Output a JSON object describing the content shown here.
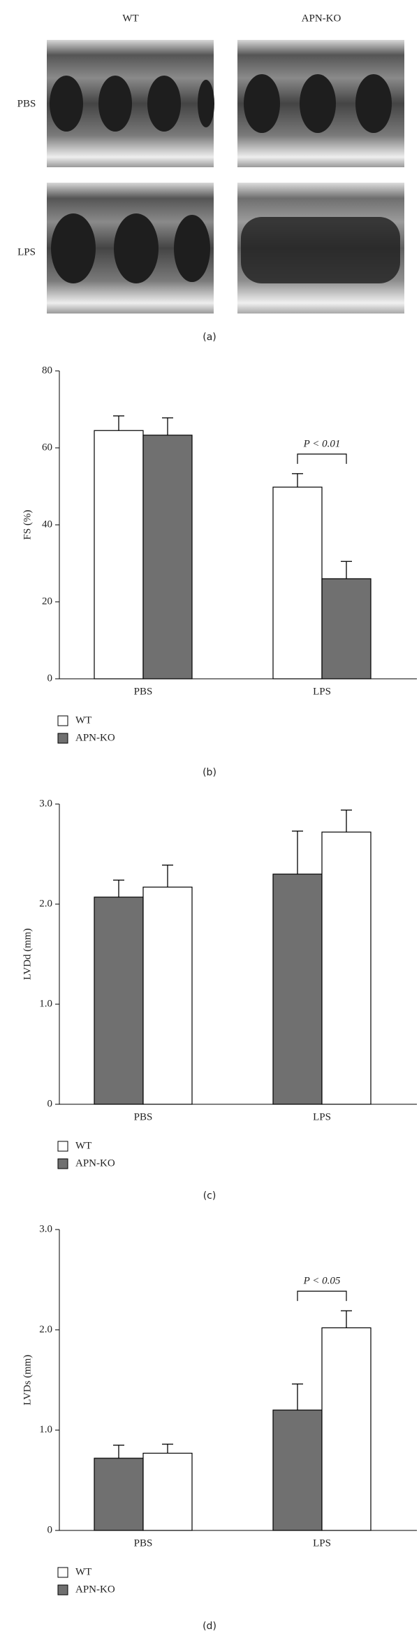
{
  "panel_a": {
    "columns": [
      "WT",
      "APN-KO"
    ],
    "rows": [
      "PBS",
      "LPS"
    ],
    "caption": "(a)"
  },
  "chart_data": [
    {
      "type": "bar",
      "caption": "(b)",
      "ylabel": "FS (%)",
      "categories": [
        "PBS",
        "LPS"
      ],
      "series": [
        {
          "name": "WT",
          "color": "#ffffff",
          "values": [
            64.5,
            49.8
          ],
          "errors": [
            3.8,
            3.5
          ]
        },
        {
          "name": "APN-KO",
          "color": "#707070",
          "values": [
            63.3,
            26
          ],
          "errors": [
            4.5,
            4.5
          ]
        }
      ],
      "bar_order": [
        0,
        1
      ],
      "ylim": [
        0,
        80
      ],
      "yticks": [
        0,
        20,
        40,
        60,
        80
      ],
      "annotation": "P < 0.01",
      "annotation_category": "LPS",
      "legend": "bottom-left"
    },
    {
      "type": "bar",
      "caption": "(c)",
      "ylabel": "LVDd (mm)",
      "categories": [
        "PBS",
        "LPS"
      ],
      "series": [
        {
          "name": "WT",
          "color": "#ffffff",
          "values": [
            2.17,
            2.72
          ],
          "errors": [
            0.22,
            0.22
          ]
        },
        {
          "name": "APN-KO",
          "color": "#707070",
          "values": [
            2.07,
            2.3
          ],
          "errors": [
            0.17,
            0.43
          ]
        }
      ],
      "bar_order": [
        1,
        0
      ],
      "ylim": [
        0,
        3
      ],
      "yticks": [
        0,
        {
          "value": 1,
          "label": "1.0"
        },
        {
          "value": 2,
          "label": "2.0"
        },
        {
          "value": 3,
          "label": "3.0"
        }
      ],
      "legend": "bottom-left"
    },
    {
      "type": "bar",
      "caption": "(d)",
      "ylabel": "LVDs (mm)",
      "categories": [
        "PBS",
        "LPS"
      ],
      "series": [
        {
          "name": "WT",
          "color": "#ffffff",
          "values": [
            0.77,
            2.02
          ],
          "errors": [
            0.09,
            0.17
          ]
        },
        {
          "name": "APN-KO",
          "color": "#707070",
          "values": [
            0.72,
            1.2
          ],
          "errors": [
            0.13,
            0.26
          ]
        }
      ],
      "bar_order": [
        1,
        0
      ],
      "ylim": [
        0,
        3
      ],
      "yticks": [
        0,
        {
          "value": 1,
          "label": "1.0"
        },
        {
          "value": 2,
          "label": "2.0"
        },
        {
          "value": 3,
          "label": "3.0"
        }
      ],
      "annotation": "P < 0.05",
      "annotation_category": "LPS",
      "legend": "bottom-left"
    }
  ]
}
